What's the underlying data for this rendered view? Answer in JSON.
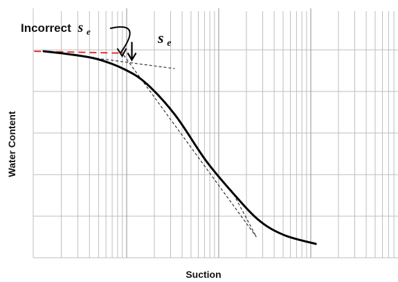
{
  "chart_data": {
    "type": "line",
    "title": "",
    "xlabel": "Suction",
    "ylabel": "Water Content",
    "x_scale": "log",
    "grid": true,
    "legend": "none",
    "x_tick_labels": [],
    "y_tick_labels": [],
    "series": [
      {
        "role": "soil water characteristic curve",
        "style": "solid",
        "color": "#000000",
        "points": [
          [
            0.0,
            1.0
          ],
          [
            0.08,
            0.985
          ],
          [
            0.17,
            0.96
          ],
          [
            0.26,
            0.905
          ],
          [
            0.33,
            0.83
          ],
          [
            0.42,
            0.67
          ],
          [
            0.52,
            0.43
          ],
          [
            0.61,
            0.255
          ],
          [
            0.69,
            0.12
          ],
          [
            0.77,
            0.045
          ],
          [
            0.87,
            0.0
          ]
        ]
      },
      {
        "role": "horizontal tangent (incorrect construction)",
        "style": "dashed",
        "color": "#e03030",
        "points": [
          [
            -0.03,
            1.0
          ],
          [
            0.255,
            0.99
          ]
        ]
      },
      {
        "role": "tangent at start of curve",
        "style": "dashed",
        "color": "#000000",
        "points": [
          [
            0.0,
            1.0
          ],
          [
            0.419,
            0.91
          ]
        ]
      },
      {
        "role": "tangent through inflection",
        "style": "dashed",
        "color": "#000000",
        "points": [
          [
            0.247,
            1.0
          ],
          [
            0.68,
            0.036
          ]
        ]
      },
      {
        "role": "tangent at lower segment",
        "style": "dashed",
        "color": "#000000",
        "points": [
          [
            0.6,
            0.28
          ],
          [
            0.68,
            0.036
          ]
        ]
      }
    ],
    "annotations": [
      {
        "label": "Incorrect",
        "symbol": "s",
        "subscript": "e",
        "points_to": [
          0.251,
          0.975
        ],
        "role": "incorrect air-entry value"
      },
      {
        "label": "",
        "symbol": "s",
        "subscript": "e",
        "points_to": [
          0.282,
          0.955
        ],
        "role": "air-entry value"
      }
    ]
  },
  "colors": {
    "grid": "#bdbdbd",
    "curve": "#000000",
    "incorrect_tangent": "#e03030",
    "tangent": "#333333"
  }
}
